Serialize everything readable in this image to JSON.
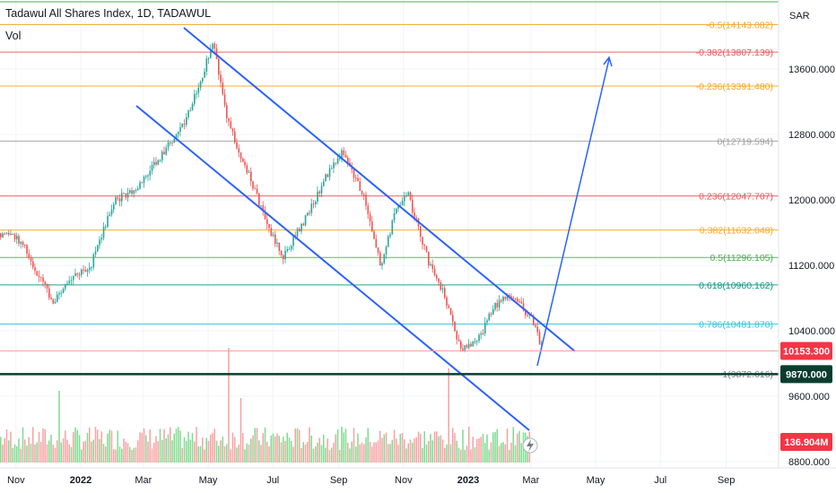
{
  "header": {
    "title": "Tadawul All Shares Index, 1D, TADAWUL",
    "volume_label": "Vol"
  },
  "axis": {
    "currency": "SAR",
    "y_ticks": [
      "13600.000",
      "12800.000",
      "12000.000",
      "11200.000",
      "10400.000",
      "9600.000",
      "8800.000"
    ],
    "x_ticks": [
      "Nov",
      "2022",
      "Mar",
      "May",
      "Jul",
      "Sep",
      "Nov",
      "2023",
      "Mar",
      "May",
      "Jul",
      "Sep"
    ]
  },
  "fib_levels": [
    {
      "label": "-0.5(14143.082)",
      "color": "#f5a623"
    },
    {
      "label": "-0.382(13807.139)",
      "color": "#e9565a"
    },
    {
      "label": "-0.236(13391.480)",
      "color": "#f5a623"
    },
    {
      "label": "0(12719.594)",
      "color": "#9e9e9e"
    },
    {
      "label": "0.236(12047.707)",
      "color": "#e9565a"
    },
    {
      "label": "0.382(11632.048)",
      "color": "#f5a623"
    },
    {
      "label": "0.5(11296.105)",
      "color": "#4caf50"
    },
    {
      "label": "0.618(10960.162)",
      "color": "#089981"
    },
    {
      "label": "0.786(10481.870)",
      "color": "#26c6da"
    },
    {
      "label": "1(9872.616)",
      "color": "#787b86"
    }
  ],
  "price_badges": {
    "last_price": "10153.300",
    "support_level": "9870.000",
    "volume": "136.904M"
  },
  "colors": {
    "up": "#26a69a",
    "down": "#ef5350",
    "vol_up": "#7ddc8d",
    "vol_down": "#f7a1a1",
    "channel": "#2962ff",
    "support": "#0b3d2e"
  },
  "chart_data": {
    "type": "candlestick",
    "title": "Tadawul All Shares Index, 1D, TADAWUL",
    "ylim": [
      8800,
      14200
    ],
    "x_range": [
      "2021-10-15",
      "2023-10-01"
    ],
    "close_path": [
      {
        "date": "2021-10-15",
        "close": 11600
      },
      {
        "date": "2021-11-05",
        "close": 11500
      },
      {
        "date": "2021-11-25",
        "close": 11000
      },
      {
        "date": "2021-12-05",
        "close": 10750
      },
      {
        "date": "2021-12-25",
        "close": 11050
      },
      {
        "date": "2022-01-10",
        "close": 11200
      },
      {
        "date": "2022-02-01",
        "close": 12000
      },
      {
        "date": "2022-02-20",
        "close": 12100
      },
      {
        "date": "2022-03-15",
        "close": 12500
      },
      {
        "date": "2022-04-10",
        "close": 13000
      },
      {
        "date": "2022-05-05",
        "close": 13900
      },
      {
        "date": "2022-05-20",
        "close": 12900
      },
      {
        "date": "2022-06-05",
        "close": 12400
      },
      {
        "date": "2022-06-25",
        "close": 11700
      },
      {
        "date": "2022-07-10",
        "close": 11300
      },
      {
        "date": "2022-08-01",
        "close": 11800
      },
      {
        "date": "2022-08-20",
        "close": 12300
      },
      {
        "date": "2022-09-05",
        "close": 12600
      },
      {
        "date": "2022-09-25",
        "close": 12000
      },
      {
        "date": "2022-10-10",
        "close": 11200
      },
      {
        "date": "2022-10-25",
        "close": 11900
      },
      {
        "date": "2022-11-05",
        "close": 12050
      },
      {
        "date": "2022-11-25",
        "close": 11200
      },
      {
        "date": "2022-12-10",
        "close": 10800
      },
      {
        "date": "2022-12-25",
        "close": 10150
      },
      {
        "date": "2023-01-10",
        "close": 10300
      },
      {
        "date": "2023-01-25",
        "close": 10700
      },
      {
        "date": "2023-02-10",
        "close": 10850
      },
      {
        "date": "2023-03-01",
        "close": 10550
      },
      {
        "date": "2023-03-12",
        "close": 10153
      }
    ],
    "volume_current": "136.904M",
    "annotations": [
      "descending channel upper trendline",
      "descending channel lower trendline",
      "projection arrow up toward -0.382(13807.139)"
    ]
  }
}
